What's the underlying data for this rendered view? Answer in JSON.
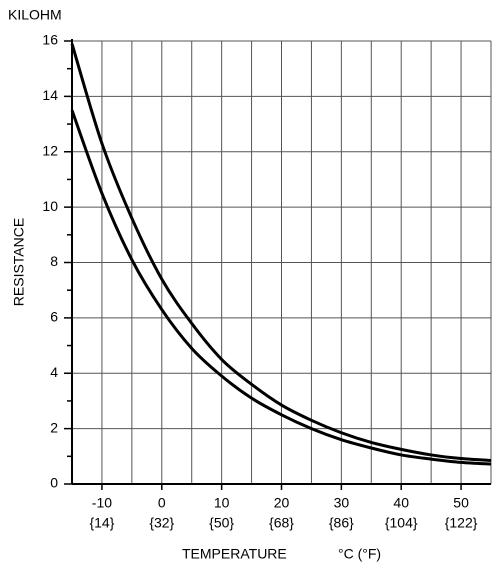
{
  "chart_data": {
    "type": "line",
    "y_unit_label": "KILOHM",
    "ylabel": "RESISTANCE",
    "xlabel": "TEMPERATURE",
    "x_unit_label": "°C (°F)",
    "x": [
      -15,
      -10,
      -5,
      0,
      5,
      10,
      15,
      20,
      25,
      30,
      35,
      40,
      45,
      50,
      55
    ],
    "series": [
      {
        "color": "#000000",
        "values": [
          15.9,
          12.3,
          9.6,
          7.4,
          5.8,
          4.5,
          3.6,
          2.85,
          2.3,
          1.85,
          1.5,
          1.25,
          1.05,
          0.92,
          0.85
        ]
      },
      {
        "color": "#000000",
        "values": [
          13.5,
          10.5,
          8.1,
          6.3,
          4.9,
          3.9,
          3.1,
          2.5,
          2.0,
          1.6,
          1.3,
          1.05,
          0.9,
          0.78,
          0.72
        ]
      }
    ],
    "xlim": [
      -15,
      55
    ],
    "ylim": [
      0,
      16
    ],
    "xticks": [
      -10,
      0,
      10,
      20,
      30,
      40,
      50
    ],
    "xticks_fahrenheit": [
      "{14}",
      "{32}",
      "{50}",
      "{68}",
      "{86}",
      "{104}",
      "{122}"
    ],
    "x_gridlines": [
      -10,
      -5,
      0,
      5,
      10,
      15,
      20,
      25,
      30,
      35,
      40,
      45,
      50,
      55
    ],
    "yticks": [
      0,
      2,
      4,
      6,
      8,
      10,
      12,
      14,
      16
    ],
    "y_minor_ticks": [
      1,
      3,
      5,
      7,
      9,
      11,
      13,
      15
    ],
    "grid": true
  }
}
